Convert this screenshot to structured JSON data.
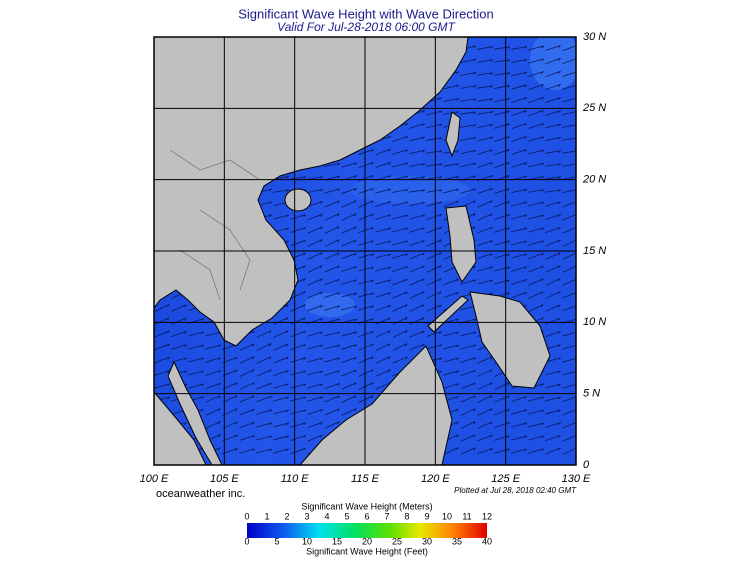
{
  "title": "Significant Wave Height with Wave Direction",
  "subtitle": "Valid For Jul-28-2018 06:00 GMT",
  "map": {
    "lat_ticks": [
      {
        "value": 30,
        "label": "30 N"
      },
      {
        "value": 25,
        "label": "25 N"
      },
      {
        "value": 20,
        "label": "20 N"
      },
      {
        "value": 15,
        "label": "15 N"
      },
      {
        "value": 10,
        "label": "10 N"
      },
      {
        "value": 5,
        "label": "5 N"
      },
      {
        "value": 0,
        "label": "0"
      }
    ],
    "lon_ticks": [
      {
        "value": 100,
        "label": "100 E"
      },
      {
        "value": 105,
        "label": "105 E"
      },
      {
        "value": 110,
        "label": "110 E"
      },
      {
        "value": 115,
        "label": "115 E"
      },
      {
        "value": 120,
        "label": "120 E"
      },
      {
        "value": 125,
        "label": "125 E"
      },
      {
        "value": 130,
        "label": "130 E"
      }
    ]
  },
  "credit": "oceanweather inc.",
  "plotted": "Plotted at Jul 28, 2018 02:40 GMT",
  "colorbar": {
    "meters_title": "Significant Wave Height (Meters)",
    "meters_ticks": [
      0,
      1,
      2,
      3,
      4,
      5,
      6,
      7,
      8,
      9,
      10,
      11,
      12
    ],
    "feet_title": "Significant Wave Height (Feet)",
    "feet_ticks": [
      0,
      5,
      10,
      15,
      20,
      25,
      30,
      35,
      40
    ]
  }
}
